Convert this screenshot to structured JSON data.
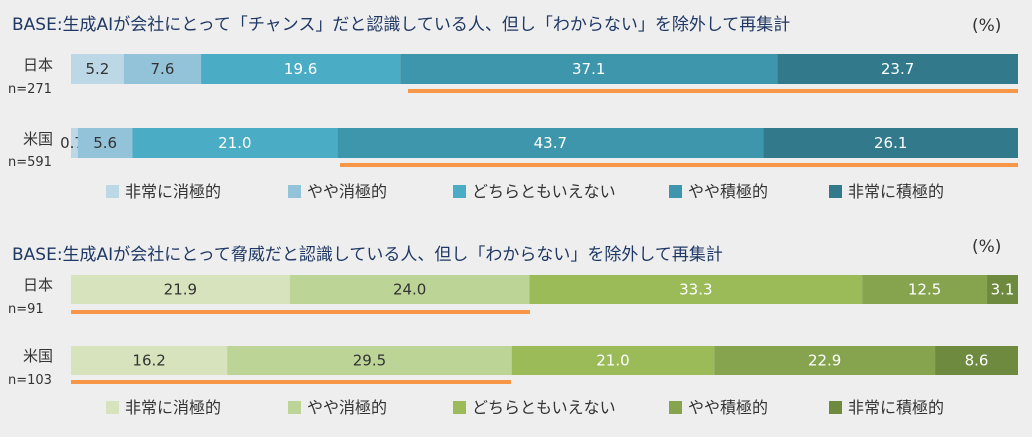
{
  "chart_data": [
    {
      "type": "bar",
      "orientation": "horizontal-stacked-100",
      "title": "BASE:生成AIが会社にとって「チャンス」だと認識している人、但し「わからない」を除外して再集計",
      "unit": "(%)",
      "categories": [
        "日本",
        "米国"
      ],
      "sample_sizes": [
        "n=271",
        "n=591"
      ],
      "series": [
        {
          "name": "非常に消極的",
          "color": "#bcd7e6",
          "values": [
            5.2,
            0.7
          ]
        },
        {
          "name": "やや消極的",
          "color": "#93c3d8",
          "values": [
            7.6,
            5.6
          ]
        },
        {
          "name": "どちらともいえない",
          "color": "#4bacc6",
          "values": [
            19.6,
            21.0
          ]
        },
        {
          "name": "やや積極的",
          "color": "#3d96ab",
          "values": [
            37.1,
            43.7
          ]
        },
        {
          "name": "非常に積極的",
          "color": "#31798b",
          "values": [
            23.7,
            26.1
          ]
        }
      ],
      "legend_position": "bottom",
      "highlight_color": "#f79646"
    },
    {
      "type": "bar",
      "orientation": "horizontal-stacked-100",
      "title": "BASE:生成AIが会社にとって脅威だと認識している人、但し「わからない」を除外して再集計",
      "unit": "(%)",
      "categories": [
        "日本",
        "米国"
      ],
      "sample_sizes": [
        "n=91",
        "n=103"
      ],
      "series": [
        {
          "name": "非常に消極的",
          "color": "#d6e3bc",
          "values": [
            21.9,
            16.2
          ]
        },
        {
          "name": "やや消極的",
          "color": "#bcd496",
          "values": [
            24.0,
            29.5
          ]
        },
        {
          "name": "どちらともいえない",
          "color": "#9bbb59",
          "values": [
            33.3,
            21.0
          ]
        },
        {
          "name": "やや積極的",
          "color": "#86a44e",
          "values": [
            12.5,
            22.9
          ]
        },
        {
          "name": "非常に積極的",
          "color": "#6e8a3e",
          "values": [
            3.1,
            8.6
          ]
        }
      ],
      "legend_position": "bottom",
      "highlight_color": "#f79646"
    }
  ]
}
